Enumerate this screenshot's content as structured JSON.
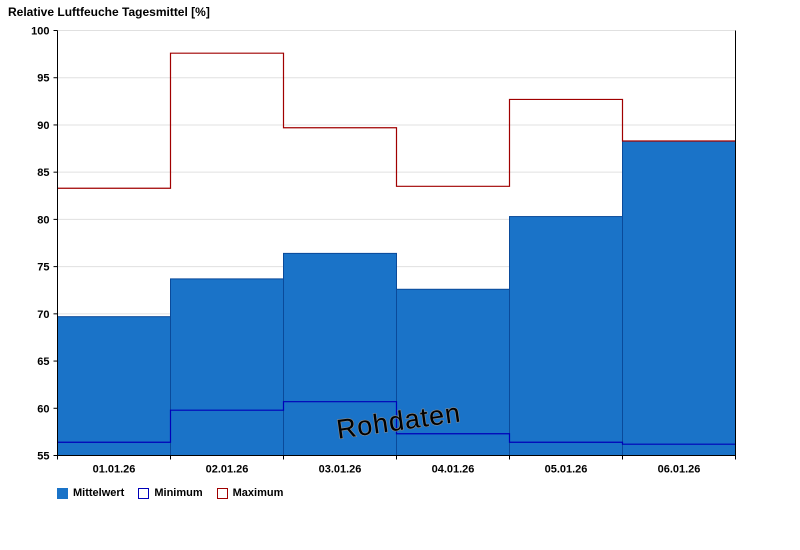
{
  "title": "Relative Luftfeuche Tagesmittel [%]",
  "watermark": "Rohdaten",
  "legend": [
    {
      "label": "Mittelwert",
      "fill": "#1a73c8",
      "border": "#1a73c8"
    },
    {
      "label": "Minimum",
      "fill": "#ffffff",
      "border": "#0000b8"
    },
    {
      "label": "Maximum",
      "fill": "#ffffff",
      "border": "#a00000"
    }
  ],
  "chart_data": {
    "type": "bar",
    "title": "Relative Luftfeuche Tagesmittel [%]",
    "categories": [
      "01.01.26",
      "02.01.26",
      "03.01.26",
      "04.01.26",
      "05.01.26",
      "06.01.26"
    ],
    "series": [
      {
        "name": "Mittelwert",
        "type": "bar",
        "color": "#1a73c8",
        "edge_color": "#0a4a9a",
        "values": [
          69.7,
          73.7,
          76.4,
          72.6,
          80.3,
          88.3
        ]
      },
      {
        "name": "Minimum",
        "type": "step",
        "color": "#0000b8",
        "values": [
          56.4,
          59.8,
          60.7,
          57.3,
          56.4,
          56.2
        ]
      },
      {
        "name": "Maximum",
        "type": "step",
        "color": "#a00000",
        "values": [
          83.3,
          97.6,
          89.7,
          83.5,
          92.7,
          88.3
        ]
      }
    ],
    "ylim": [
      55,
      100
    ],
    "ytick_step": 5,
    "xlabel": "",
    "ylabel": "",
    "grid": true,
    "legend_position": "bottom-left",
    "annotations": [
      "Rohdaten"
    ]
  }
}
